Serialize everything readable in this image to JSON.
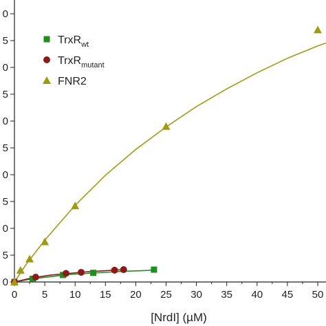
{
  "chart_data": {
    "type": "scatter",
    "xlabel": "[NrdI] (µM)",
    "xlim": [
      0,
      50
    ],
    "ylim": [
      0,
      5
    ],
    "x_ticks": [
      0,
      5,
      10,
      15,
      20,
      25,
      30,
      35,
      40,
      45,
      50
    ],
    "y_tick_labels": [
      "0",
      "5",
      "0",
      "5",
      "0",
      "5",
      "0",
      "5",
      "0",
      "5",
      "0"
    ],
    "grid": false,
    "legend_position": "top-left",
    "series": [
      {
        "name": "TrxR",
        "name_subscript": "wt",
        "marker": "square",
        "color": "#1f8f1f",
        "points": [
          {
            "x": 0,
            "y": 0
          },
          {
            "x": 3,
            "y": 0.06
          },
          {
            "x": 8,
            "y": 0.13
          },
          {
            "x": 13,
            "y": 0.17
          },
          {
            "x": 23,
            "y": 0.23
          }
        ],
        "fit_curve": [
          [
            0,
            0
          ],
          [
            3,
            0.06
          ],
          [
            6,
            0.1
          ],
          [
            9,
            0.14
          ],
          [
            12,
            0.16
          ],
          [
            15,
            0.18
          ],
          [
            18,
            0.2
          ],
          [
            21,
            0.21
          ],
          [
            23,
            0.22
          ]
        ]
      },
      {
        "name": "TrxR",
        "name_subscript": "mutant",
        "marker": "circle",
        "color": "#8b1a1a",
        "points": [
          {
            "x": 0,
            "y": 0
          },
          {
            "x": 3.5,
            "y": 0.09
          },
          {
            "x": 8.5,
            "y": 0.16
          },
          {
            "x": 11,
            "y": 0.18
          },
          {
            "x": 16.5,
            "y": 0.22
          },
          {
            "x": 18,
            "y": 0.23
          }
        ],
        "fit_curve": [
          [
            0,
            0
          ],
          [
            3,
            0.08
          ],
          [
            6,
            0.13
          ],
          [
            9,
            0.16
          ],
          [
            12,
            0.19
          ],
          [
            15,
            0.21
          ],
          [
            18,
            0.23
          ]
        ]
      },
      {
        "name": "FNR2",
        "marker": "triangle",
        "color": "#a09a12",
        "points": [
          {
            "x": 0,
            "y": 0
          },
          {
            "x": 1,
            "y": 0.22
          },
          {
            "x": 2.5,
            "y": 0.43
          },
          {
            "x": 5,
            "y": 0.75
          },
          {
            "x": 10,
            "y": 1.42
          },
          {
            "x": 25,
            "y": 2.9
          },
          {
            "x": 50,
            "y": 4.7
          }
        ],
        "fit_curve": [
          [
            0,
            0
          ],
          [
            2,
            0.34
          ],
          [
            5,
            0.78
          ],
          [
            10,
            1.43
          ],
          [
            15,
            1.99
          ],
          [
            20,
            2.47
          ],
          [
            25,
            2.89
          ],
          [
            30,
            3.27
          ],
          [
            35,
            3.6
          ],
          [
            40,
            3.9
          ],
          [
            45,
            4.17
          ],
          [
            50,
            4.4
          ],
          [
            52,
            4.48
          ]
        ]
      }
    ]
  }
}
